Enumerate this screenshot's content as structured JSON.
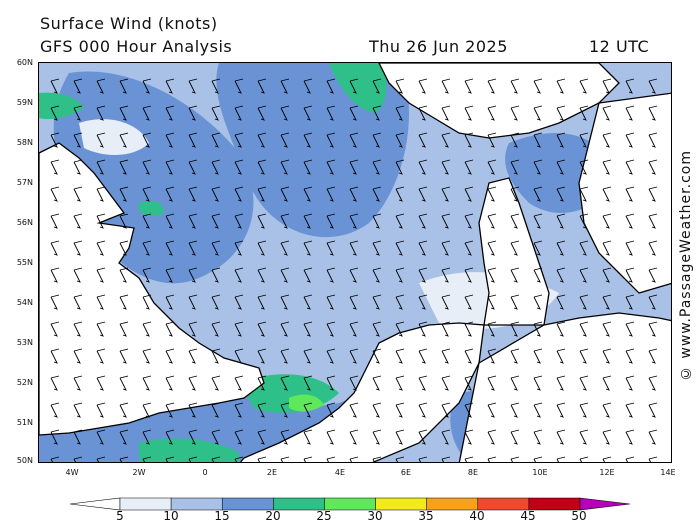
{
  "header": {
    "title": "Surface Wind (knots)",
    "subtitle": "GFS 000 Hour Analysis",
    "date": "Thu 26 Jun 2025",
    "time": "12 UTC"
  },
  "credit": "© www.PassageWeather.com",
  "map": {
    "lat_labels": [
      "60N",
      "59N",
      "58N",
      "57N",
      "56N",
      "55N",
      "54N",
      "53N",
      "52N",
      "51N",
      "50N"
    ],
    "lon_labels": [
      "4W",
      "2W",
      "0",
      "2E",
      "4E",
      "6E",
      "8E",
      "10E",
      "12E",
      "14E"
    ],
    "land_color": "#ffffff",
    "coast_color": "#000000"
  },
  "legend": {
    "ticks": [
      "5",
      "10",
      "15",
      "20",
      "25",
      "30",
      "35",
      "40",
      "45",
      "50"
    ],
    "colors": [
      "#e8eef8",
      "#a9c1e6",
      "#6a93d6",
      "#2fc08a",
      "#5fe85a",
      "#f3ea1c",
      "#f7a21a",
      "#ee4a2e",
      "#c00017",
      "#b800b8"
    ]
  }
}
